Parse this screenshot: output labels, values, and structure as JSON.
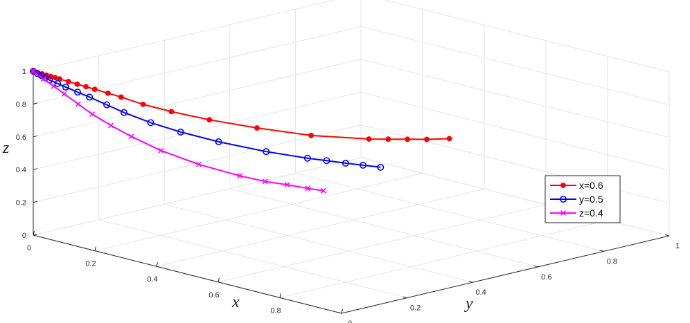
{
  "chart_data": {
    "type": "line",
    "view": "3d",
    "xlabel": "x",
    "ylabel": "y",
    "zlabel": "z",
    "xlim": [
      0,
      1
    ],
    "ylim": [
      0,
      1
    ],
    "zlim": [
      0,
      1
    ],
    "x_ticks": [
      "0",
      "0.2",
      "0.4",
      "0.6",
      "0.8",
      "1"
    ],
    "y_ticks": [
      "0",
      "0.2",
      "0.4",
      "0.6",
      "0.8",
      "1"
    ],
    "z_ticks": [
      "0",
      "0.2",
      "0.4",
      "0.6",
      "0.8",
      "1"
    ],
    "grid": true,
    "legend_position": "right",
    "series": [
      {
        "name": "x=0.6",
        "color": "#ff0000",
        "marker": "filled-circle",
        "points": [
          [
            0.0,
            0.0,
            1.0
          ],
          [
            0.01,
            0.004,
            0.995
          ],
          [
            0.02,
            0.008,
            0.99
          ],
          [
            0.03,
            0.012,
            0.985
          ],
          [
            0.04,
            0.016,
            0.98
          ],
          [
            0.05,
            0.02,
            0.975
          ],
          [
            0.06,
            0.024,
            0.97
          ],
          [
            0.08,
            0.032,
            0.96
          ],
          [
            0.1,
            0.04,
            0.95
          ],
          [
            0.12,
            0.048,
            0.94
          ],
          [
            0.14,
            0.056,
            0.93
          ],
          [
            0.17,
            0.068,
            0.915
          ],
          [
            0.2,
            0.08,
            0.9
          ],
          [
            0.25,
            0.1,
            0.87
          ],
          [
            0.31,
            0.13,
            0.84
          ],
          [
            0.38,
            0.18,
            0.8
          ],
          [
            0.46,
            0.25,
            0.755
          ],
          [
            0.54,
            0.34,
            0.705
          ],
          [
            0.6,
            0.46,
            0.655
          ],
          [
            0.62,
            0.5,
            0.645
          ],
          [
            0.64,
            0.54,
            0.635
          ],
          [
            0.66,
            0.58,
            0.625
          ],
          [
            0.68,
            0.63,
            0.615
          ]
        ]
      },
      {
        "name": "y=0.5",
        "color": "#0000ff",
        "marker": "open-circle",
        "points": [
          [
            0.0,
            0.0,
            1.0
          ],
          [
            0.01,
            0.003,
            0.99
          ],
          [
            0.02,
            0.006,
            0.98
          ],
          [
            0.03,
            0.009,
            0.97
          ],
          [
            0.04,
            0.012,
            0.96
          ],
          [
            0.06,
            0.018,
            0.945
          ],
          [
            0.08,
            0.024,
            0.93
          ],
          [
            0.11,
            0.032,
            0.91
          ],
          [
            0.14,
            0.04,
            0.89
          ],
          [
            0.18,
            0.055,
            0.855
          ],
          [
            0.22,
            0.07,
            0.82
          ],
          [
            0.28,
            0.095,
            0.775
          ],
          [
            0.34,
            0.13,
            0.73
          ],
          [
            0.41,
            0.18,
            0.68
          ],
          [
            0.49,
            0.25,
            0.625
          ],
          [
            0.56,
            0.31,
            0.59
          ],
          [
            0.59,
            0.34,
            0.575
          ],
          [
            0.62,
            0.37,
            0.56
          ],
          [
            0.65,
            0.395,
            0.55
          ],
          [
            0.68,
            0.42,
            0.54
          ]
        ]
      },
      {
        "name": "z=0.4",
        "color": "#ff00ff",
        "marker": "cross",
        "points": [
          [
            0.0,
            0.0,
            1.0
          ],
          [
            0.03,
            0.003,
            0.965
          ],
          [
            0.06,
            0.006,
            0.935
          ],
          [
            0.09,
            0.01,
            0.9
          ],
          [
            0.13,
            0.015,
            0.855
          ],
          [
            0.17,
            0.02,
            0.81
          ],
          [
            0.22,
            0.03,
            0.76
          ],
          [
            0.27,
            0.045,
            0.71
          ],
          [
            0.34,
            0.07,
            0.645
          ],
          [
            0.42,
            0.11,
            0.58
          ],
          [
            0.5,
            0.16,
            0.525
          ],
          [
            0.55,
            0.19,
            0.5
          ],
          [
            0.59,
            0.22,
            0.485
          ],
          [
            0.63,
            0.245,
            0.47
          ],
          [
            0.66,
            0.265,
            0.46
          ]
        ]
      }
    ]
  }
}
